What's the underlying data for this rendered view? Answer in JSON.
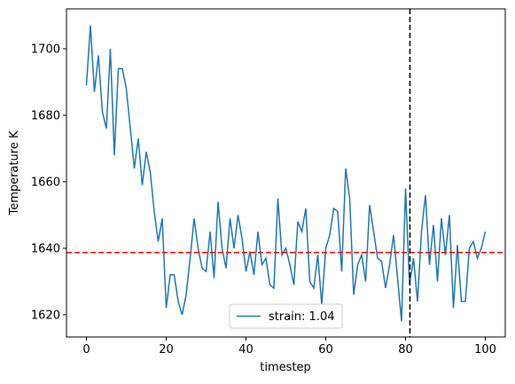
{
  "chart_data": {
    "type": "line",
    "xlabel": "timestep",
    "ylabel": "Temperature K",
    "x": [
      0,
      1,
      2,
      3,
      4,
      5,
      6,
      7,
      8,
      9,
      10,
      11,
      12,
      13,
      14,
      15,
      16,
      17,
      18,
      19,
      20,
      21,
      22,
      23,
      24,
      25,
      26,
      27,
      28,
      29,
      30,
      31,
      32,
      33,
      34,
      35,
      36,
      37,
      38,
      39,
      40,
      41,
      42,
      43,
      44,
      45,
      46,
      47,
      48,
      49,
      50,
      51,
      52,
      53,
      54,
      55,
      56,
      57,
      58,
      59,
      60,
      61,
      62,
      63,
      64,
      65,
      66,
      67,
      68,
      69,
      70,
      71,
      72,
      73,
      74,
      75,
      76,
      77,
      78,
      79,
      80,
      81,
      82,
      83,
      84,
      85,
      86,
      87,
      88,
      89,
      90,
      91,
      92,
      93,
      94,
      95,
      96,
      97,
      98,
      99,
      100
    ],
    "series": [
      {
        "name": "strain: 1.04",
        "color": "#1f77b4",
        "values": [
          1689,
          1707,
          1687,
          1698,
          1681,
          1676,
          1700,
          1668,
          1694,
          1694,
          1688,
          1676,
          1664,
          1673,
          1659,
          1669,
          1663,
          1651,
          1642,
          1649,
          1622,
          1632,
          1632,
          1624,
          1620,
          1626,
          1637,
          1649,
          1640,
          1634,
          1633,
          1645,
          1631,
          1654,
          1640,
          1634,
          1649,
          1640,
          1650,
          1643,
          1633,
          1639,
          1632,
          1645,
          1635,
          1637,
          1629,
          1628,
          1655,
          1638,
          1640,
          1635,
          1629,
          1648,
          1645,
          1652,
          1630,
          1628,
          1638,
          1623,
          1640,
          1644,
          1652,
          1651,
          1633,
          1664,
          1655,
          1626,
          1635,
          1638,
          1630,
          1653,
          1645,
          1637,
          1636,
          1628,
          1635,
          1644,
          1631,
          1618,
          1658,
          1629,
          1637,
          1624,
          1645,
          1656,
          1635,
          1647,
          1630,
          1649,
          1638,
          1650,
          1622,
          1641,
          1624,
          1624,
          1640,
          1642,
          1637,
          1640,
          1645
        ]
      }
    ],
    "xlim": [
      -5,
      105
    ],
    "xticks": [
      0,
      20,
      40,
      60,
      80,
      100
    ],
    "ylim": [
      1613.3,
      1712
    ],
    "yticks": [
      1620,
      1640,
      1660,
      1680,
      1700
    ],
    "hlines": [
      {
        "value": 1638.7,
        "color": "#ff0000"
      }
    ],
    "vlines": [
      {
        "value": 81.1,
        "color": "#000000"
      }
    ],
    "legend": "lower center"
  }
}
